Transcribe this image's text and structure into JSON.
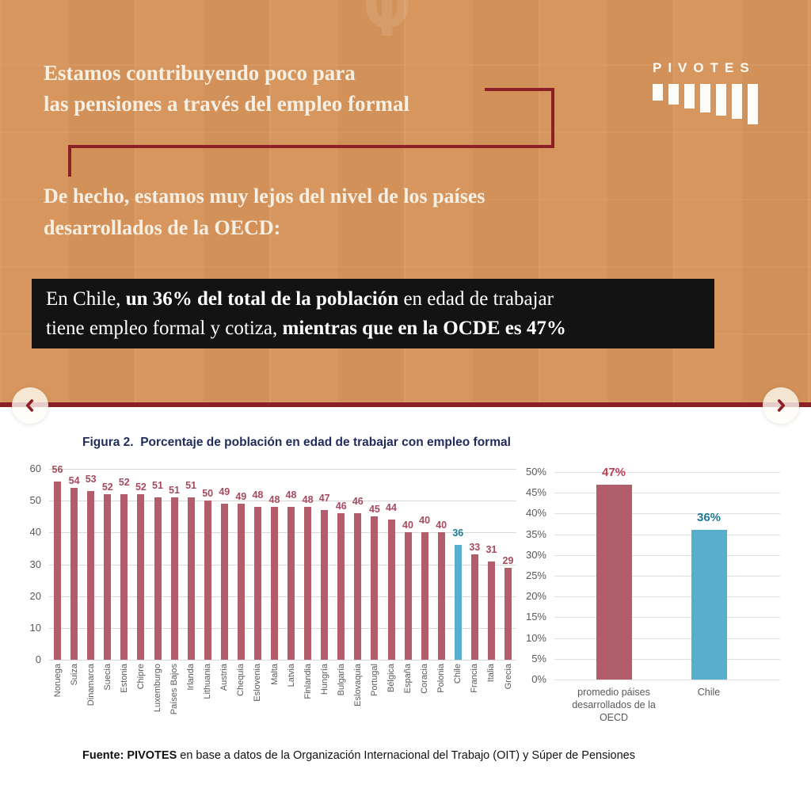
{
  "page": {
    "bg_color": "#d6945a",
    "accent_color": "#8b2127",
    "highlight_blue": "#57aecd",
    "bar_maroon": "#b25d6c"
  },
  "header": {
    "logo_text": "PIVOTES",
    "title_line1": "Estamos contribuyendo poco para",
    "title_line2": "las pensiones a través del empleo formal",
    "subtitle_line1": "De hecho, estamos muy lejos del nivel de los países",
    "subtitle_line2": "desarrollados de la OECD:"
  },
  "highlight_box": {
    "line1_a": "En Chile, ",
    "line1_bold": "un 36% del total de la población",
    "line1_c": " en edad de trabajar",
    "line2_a": "tiene empleo formal y cotiza, ",
    "line2_bold": "mientras que en la OCDE es 47%"
  },
  "carousel": {
    "prev_label": "previous slide",
    "next_label": "next slide"
  },
  "figure": {
    "title": "Figura 2.  Porcentaje de población en edad de trabajar con empleo formal",
    "source_bold": "Fuente: PIVOTES",
    "source_rest": " en base a datos de la Organización Internacional del Trabajo (OIT) y Súper de Pensiones"
  },
  "chart_data": [
    {
      "type": "bar",
      "title": "Figura 2.  Porcentaje de población en edad de trabajar con empleo formal",
      "categories": [
        "Noruega",
        "Suiza",
        "Dinamarca",
        "Suecia",
        "Estonia",
        "Chipre",
        "Luxemburgo",
        "Países Bajos",
        "Irlanda",
        "Lithuania",
        "Austria",
        "Chequia",
        "Eslovenia",
        "Malta",
        "Latvia",
        "Finlandia",
        "Hungría",
        "Bulgaria",
        "Eslovaquia",
        "Portugal",
        "Bélgica",
        "España",
        "Coracia",
        "Polonia",
        "Chile",
        "Francia",
        "Italia",
        "Grecia"
      ],
      "values": [
        56,
        54,
        53,
        52,
        52,
        52,
        51,
        51,
        51,
        50,
        49,
        49,
        48,
        48,
        48,
        48,
        47,
        46,
        46,
        45,
        44,
        40,
        40,
        40,
        36,
        33,
        31,
        29
      ],
      "highlight_category": "Chile",
      "bar_color": "#b25d6c",
      "highlight_color": "#57aecd",
      "label_color": "#a64a5e",
      "highlight_label_color": "#1b7a96",
      "ylim": [
        0,
        60
      ],
      "yticks": [
        0,
        10,
        20,
        30,
        40,
        50,
        60
      ],
      "grid": true,
      "data_labels": true,
      "legend": "none"
    },
    {
      "type": "bar",
      "categories": [
        "promedio páises\ndesarrollados de la\nOECD",
        "Chile"
      ],
      "values": [
        47,
        36
      ],
      "data_label_texts": [
        "47%",
        "36%"
      ],
      "bar_colors": [
        "#b25d6c",
        "#57aecd"
      ],
      "label_colors": [
        "#c13c52",
        "#1b7a96"
      ],
      "ylim": [
        0,
        50
      ],
      "yticks": [
        "0%",
        "5%",
        "10%",
        "15%",
        "20%",
        "25%",
        "30%",
        "35%",
        "40%",
        "45%",
        "50%"
      ],
      "grid": true,
      "legend": "none"
    }
  ]
}
